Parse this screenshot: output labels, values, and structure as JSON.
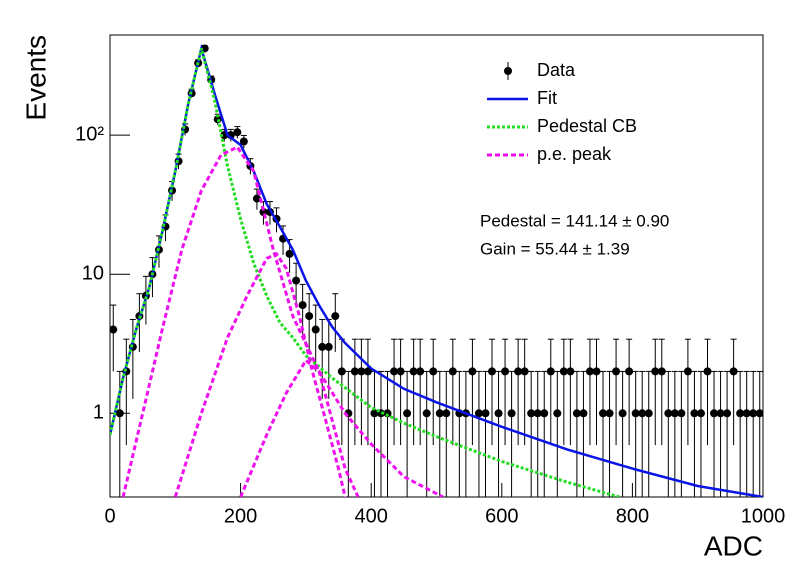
{
  "chart_data": {
    "type": "histogram-fit",
    "log_y": true,
    "y_label": "Events",
    "x_label": "ADC",
    "xlim": [
      0,
      1000
    ],
    "xticks": [
      0,
      200,
      400,
      600,
      800,
      1000
    ],
    "ylim": [
      0.25,
      525
    ],
    "yticks": [
      1,
      10,
      {
        "value": 100,
        "label": "10²"
      }
    ],
    "legend": "upper right",
    "annotations": [
      "Pedestal = 141.14 ± 0.90",
      "Gain = 55.44 ± 1.39"
    ],
    "series": [
      {
        "name": "Data",
        "color": "#000000",
        "style": "points",
        "x": [
          5,
          15,
          25,
          35,
          45,
          55,
          65,
          75,
          85,
          95,
          105,
          115,
          125,
          135,
          145,
          155,
          165,
          175,
          185,
          195,
          205,
          215,
          225,
          235,
          245,
          255,
          265,
          275,
          285,
          295,
          305,
          315,
          325,
          335,
          345,
          355,
          365,
          375,
          385,
          395,
          405,
          415,
          425,
          435,
          445,
          455,
          465,
          475,
          485,
          495,
          505,
          515,
          525,
          535,
          545,
          555,
          565,
          575,
          585,
          595,
          605,
          615,
          625,
          635,
          645,
          655,
          665,
          675,
          685,
          695,
          705,
          715,
          725,
          735,
          745,
          755,
          765,
          775,
          785,
          795,
          805,
          815,
          825,
          835,
          845,
          855,
          865,
          875,
          885,
          895,
          905,
          915,
          925,
          935,
          945,
          955,
          965,
          975,
          985,
          995
        ],
        "values": [
          4,
          1,
          2,
          3,
          5,
          7,
          10,
          15,
          22,
          40,
          65,
          110,
          200,
          330,
          420,
          250,
          130,
          100,
          100,
          105,
          90,
          60,
          35,
          28,
          28,
          25,
          18,
          14,
          9,
          6,
          5,
          4,
          3,
          3,
          5,
          2,
          1,
          2,
          2,
          2,
          1,
          1,
          1,
          2,
          2,
          1,
          2,
          2,
          1,
          2,
          1,
          1,
          2,
          1,
          1,
          2,
          1,
          1,
          2,
          1,
          2,
          1,
          2,
          2,
          1,
          1,
          1,
          2,
          1,
          2,
          2,
          1,
          1,
          2,
          2,
          1,
          1,
          2,
          1,
          2,
          1,
          1,
          1,
          2,
          2,
          1,
          1,
          1,
          2,
          1,
          1,
          2,
          1,
          1,
          1,
          2,
          1,
          1,
          1,
          1
        ],
        "errors": [
          2,
          1,
          1.41,
          1.73,
          2.24,
          2.65,
          3.16,
          3.87,
          4.69,
          6.32,
          8.06,
          10.49,
          14.14,
          18.17,
          20.49,
          15.81,
          11.4,
          10,
          10,
          10.25,
          9.49,
          7.75,
          5.92,
          5.29,
          5.29,
          5,
          4.24,
          3.74,
          3,
          2.45,
          2.24,
          2,
          1.73,
          1.73,
          2.24,
          1.41,
          1,
          1.41,
          1.41,
          1.41,
          1,
          1,
          1,
          1.41,
          1.41,
          1,
          1.41,
          1.41,
          1,
          1.41,
          1,
          1,
          1.41,
          1,
          1,
          1.41,
          1,
          1,
          1.41,
          1,
          1.41,
          1,
          1.41,
          1.41,
          1,
          1,
          1,
          1.41,
          1,
          1.41,
          1.41,
          1,
          1,
          1.41,
          1.41,
          1,
          1,
          1.41,
          1,
          1.41,
          1,
          1,
          1,
          1.41,
          1.41,
          1,
          1,
          1,
          1.41,
          1,
          1,
          1.41,
          1,
          1,
          1,
          1.41,
          1,
          1,
          1,
          1
        ]
      },
      {
        "name": "Fit",
        "color": "#0a14e6",
        "style": "solid",
        "x": [
          0,
          20,
          40,
          60,
          80,
          100,
          120,
          140,
          160,
          180,
          200,
          220,
          240,
          260,
          280,
          300,
          320,
          340,
          360,
          400,
          450,
          500,
          600,
          700,
          800,
          900,
          1000
        ],
        "values": [
          0.7,
          1.8,
          4,
          8,
          20,
          55,
          170,
          420,
          200,
          100,
          85,
          55,
          32,
          22,
          15,
          9,
          6,
          4.2,
          3.2,
          2.1,
          1.5,
          1.2,
          0.8,
          0.55,
          0.4,
          0.3,
          0.25
        ]
      },
      {
        "name": "Pedestal CB",
        "color": "#22dd22",
        "style": "dotted",
        "x": [
          0,
          20,
          40,
          60,
          80,
          100,
          120,
          140,
          160,
          180,
          200,
          220,
          240,
          260,
          280,
          300,
          340,
          400,
          450,
          500,
          600,
          700,
          780
        ],
        "values": [
          0.7,
          1.8,
          4,
          8,
          20,
          55,
          170,
          420,
          180,
          60,
          25,
          12,
          7,
          4.5,
          3.5,
          2.6,
          1.8,
          1.1,
          0.85,
          0.68,
          0.45,
          0.32,
          0.25
        ]
      },
      {
        "name": "p.e. peak",
        "color": "#ee11ee",
        "style": "dashed",
        "curves": [
          {
            "x": [
              20,
              50,
              80,
              110,
              140,
              170,
              195,
              220,
              250,
              280,
              320,
              360,
              400,
              450,
              510
            ],
            "values": [
              0.25,
              1,
              4,
              15,
              40,
              72,
              82,
              55,
              15,
              5,
              2,
              1,
              0.6,
              0.35,
              0.25
            ]
          },
          {
            "x": [
              100,
              140,
              180,
              210,
              240,
              255,
              270,
              290,
              310,
              330,
              350,
              360
            ],
            "values": [
              0.25,
              1,
              3.5,
              7,
              13,
              14,
              11,
              5,
              2,
              0.9,
              0.4,
              0.25
            ]
          },
          {
            "x": [
              200,
              240,
              270,
              300,
              320,
              340,
              360,
              380
            ],
            "values": [
              0.25,
              0.7,
              1.4,
              2.4,
              2,
              0.9,
              0.4,
              0.25
            ]
          }
        ]
      }
    ]
  }
}
